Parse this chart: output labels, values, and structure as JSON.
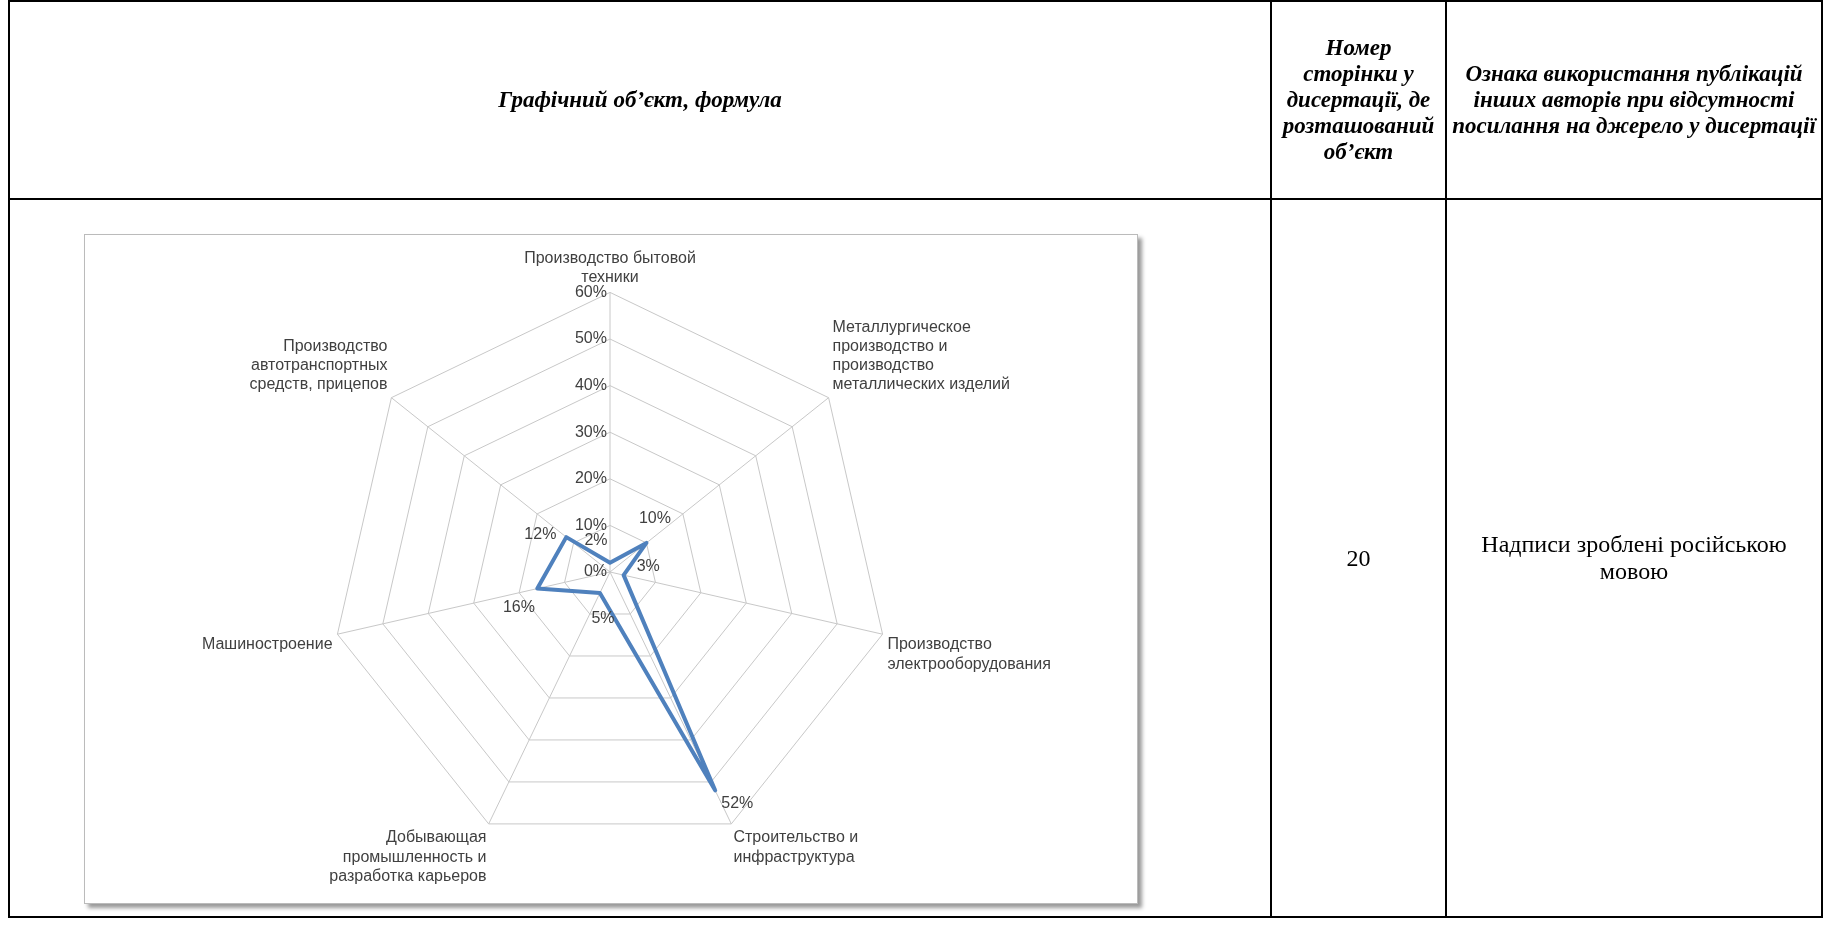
{
  "chart_data": [
    {
      "type": "radar",
      "categories": [
        "Производство бытовой техники",
        "Металлургическое производство и производство металлических изделий",
        "Производство электрооборудования",
        "Строительство и инфраструктура",
        "Добывающая промышленность и разработка карьеров",
        "Машиностроение",
        "Производство автотранспортных средств, прицепов"
      ],
      "series": [
        {
          "color": "#4f81bd",
          "values": [
            2,
            10,
            3,
            52,
            5,
            16,
            12
          ],
          "value_labels": [
            "2%",
            "10%",
            "3%",
            "52%",
            "5%",
            "16%",
            "12%"
          ]
        }
      ],
      "ylim": [
        0,
        60
      ],
      "yticks": [
        {
          "value": 0,
          "label": "0%"
        },
        {
          "value": 10,
          "label": "10%"
        },
        {
          "value": 20,
          "label": "20%"
        },
        {
          "value": 30,
          "label": "30%"
        },
        {
          "value": 40,
          "label": "40%"
        },
        {
          "value": 50,
          "label": "50%"
        },
        {
          "value": 60,
          "label": "60%"
        }
      ],
      "grid": true,
      "legend": false,
      "marker": "none"
    },
    {
      "type": "other",
      "annotations": [
        "Графічний об’єкт, формула",
        "Номер сторінки у дисертації, де розташований об’єкт",
        "Ознака використання публікацій інших авторів при відсутності посилання на джерело у дисертації",
        "20",
        "Надписи зроблені російською мовою"
      ]
    }
  ]
}
